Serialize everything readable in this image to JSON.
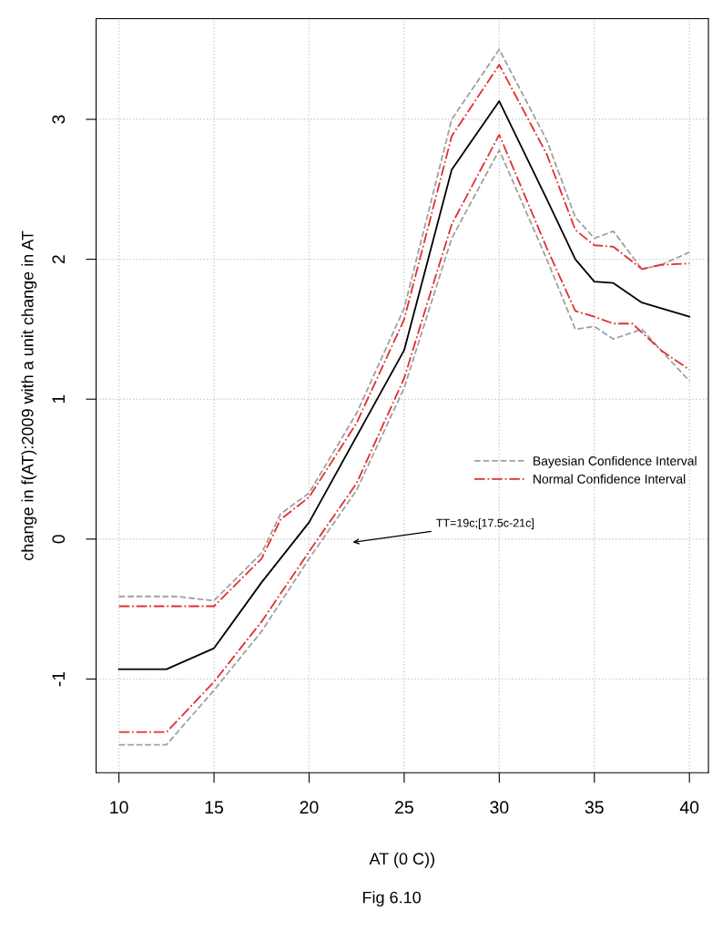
{
  "chart_data": {
    "type": "line",
    "xlabel": "AT (0 C))",
    "ylabel": "change in f(AT):2009 with a unit change in AT",
    "annotations": [
      "TT=19c;[17.5c-21c]",
      "Fig 6.10"
    ],
    "xlim": [
      8.8,
      41
    ],
    "ylim": [
      -1.67,
      3.72
    ],
    "xticks": [
      10,
      15,
      20,
      25,
      30,
      35,
      40
    ],
    "yticks": [
      {
        "value": -1,
        "label": "-1"
      },
      0,
      1,
      2,
      3
    ],
    "grid": true,
    "legend": "right",
    "marker": "none",
    "series": [
      {
        "color": "#000000",
        "line_style": "solid",
        "x": [
          10,
          12.5,
          15,
          17.5,
          20,
          25,
          27.5,
          30,
          32.5,
          34,
          35,
          36,
          37.5,
          40
        ],
        "values": [
          -0.93,
          -0.93,
          -0.78,
          -0.31,
          0.12,
          1.35,
          2.64,
          3.13,
          2.43,
          2.0,
          1.84,
          1.83,
          1.69,
          1.59
        ]
      },
      {
        "name": "Bayesian Confidence Interval",
        "color": "#a0a0a0",
        "line_style": "dashed",
        "x": [
          10,
          13,
          15,
          17.5,
          18.5,
          20,
          22.5,
          25,
          27.5,
          30,
          32.5,
          34,
          35,
          36,
          37.5,
          38.5,
          40
        ],
        "values": [
          -0.41,
          -0.41,
          -0.44,
          -0.1,
          0.18,
          0.33,
          0.9,
          1.65,
          3.0,
          3.5,
          2.85,
          2.3,
          2.15,
          2.2,
          1.93,
          1.96,
          2.05
        ]
      },
      {
        "color": "#a0a0a0",
        "line_style": "dashed",
        "x": [
          10,
          12.5,
          15,
          17.5,
          20,
          22.5,
          25,
          27.5,
          30,
          32.5,
          34,
          35,
          36,
          37.5,
          38.5,
          40
        ],
        "values": [
          -1.47,
          -1.47,
          -1.08,
          -0.66,
          -0.14,
          0.35,
          1.08,
          2.15,
          2.78,
          2.0,
          1.5,
          1.52,
          1.43,
          1.5,
          1.35,
          1.13
        ]
      },
      {
        "name": "Normal Confidence Interval",
        "color": "#e03030",
        "line_style": "dashdot",
        "x": [
          10,
          15,
          17.5,
          18.5,
          20,
          22.5,
          25,
          27.5,
          30,
          32.5,
          34,
          35,
          36,
          37.5,
          38.5,
          40
        ],
        "values": [
          -0.48,
          -0.48,
          -0.14,
          0.14,
          0.3,
          0.83,
          1.57,
          2.88,
          3.39,
          2.75,
          2.21,
          2.1,
          2.09,
          1.93,
          1.96,
          1.97
        ]
      },
      {
        "color": "#e03030",
        "line_style": "dashdot",
        "x": [
          10,
          12.5,
          15,
          17.5,
          20,
          22.5,
          25,
          27.5,
          30,
          32.5,
          34,
          35,
          36,
          37,
          38.5,
          40
        ],
        "values": [
          -1.38,
          -1.38,
          -1.02,
          -0.59,
          -0.09,
          0.4,
          1.15,
          2.25,
          2.89,
          2.08,
          1.63,
          1.59,
          1.54,
          1.54,
          1.35,
          1.21
        ]
      }
    ]
  }
}
